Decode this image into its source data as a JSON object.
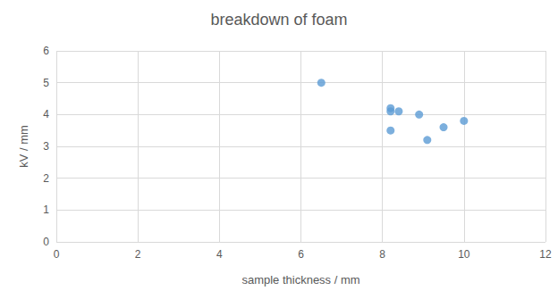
{
  "chart_data": {
    "type": "scatter",
    "title": "breakdown of foam",
    "x_label": "sample thickness / mm",
    "y_label": "kV / mm",
    "x": [
      6.5,
      8.2,
      8.2,
      8.4,
      8.9,
      8.2,
      9.1,
      9.5,
      10.0
    ],
    "values": [
      5.0,
      4.2,
      4.1,
      4.1,
      4.0,
      3.5,
      3.2,
      3.6,
      3.8
    ],
    "color": "#5b9bd5",
    "marker": "circle",
    "xlim": [
      0,
      12
    ],
    "xticks": [
      0,
      2,
      4,
      6,
      8,
      10,
      12
    ],
    "ylim": [
      0,
      6
    ],
    "yticks": [
      0,
      1,
      2,
      3,
      4,
      5,
      6
    ],
    "grid": true
  }
}
